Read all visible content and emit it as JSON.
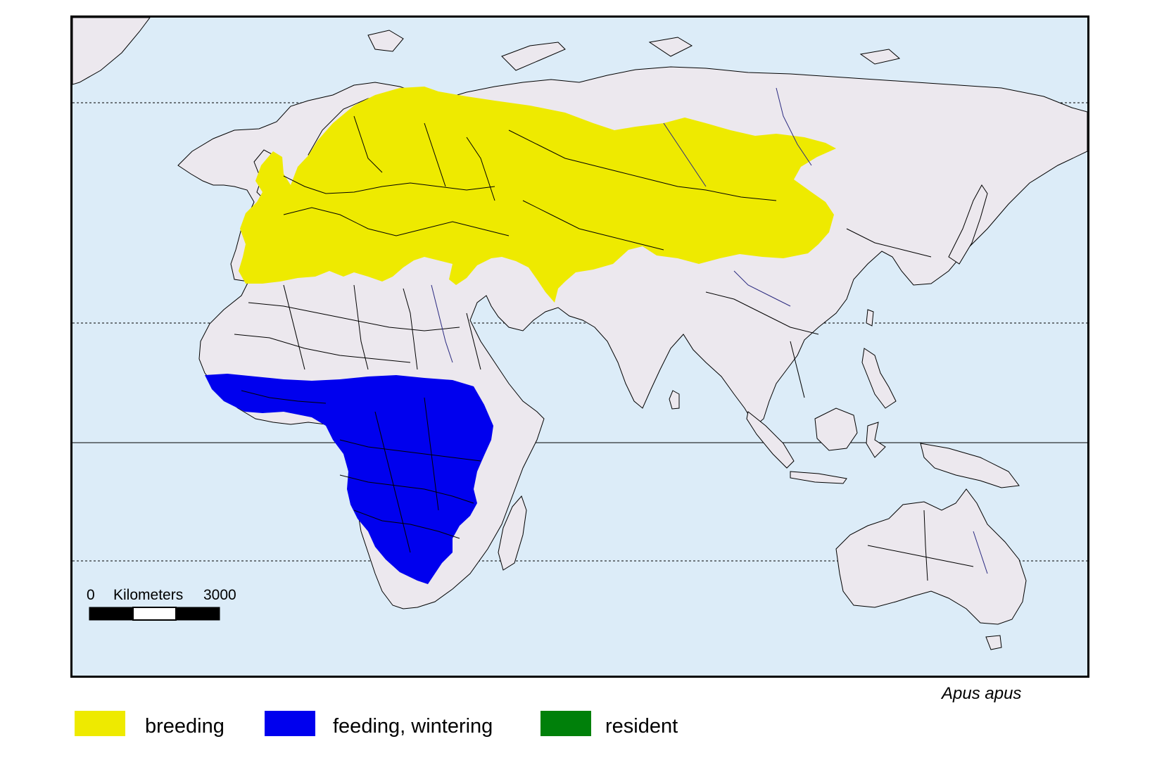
{
  "map": {
    "colors": {
      "ocean": "#dcecf8",
      "land": "#ece8ee",
      "breeding": "#eeea00",
      "feeding_wintering": "#0000ee",
      "resident": "#00800a",
      "border": "#000000",
      "river": "#2a2a80"
    },
    "scale_bar": {
      "start_label": "0",
      "unit_label": "Kilometers",
      "end_label": "3000"
    },
    "species_name": "Apus apus"
  },
  "legend": [
    {
      "label": "breeding",
      "color": "#eeea00"
    },
    {
      "label": "feeding, wintering",
      "color": "#0000ee"
    },
    {
      "label": "resident",
      "color": "#00800a"
    }
  ]
}
